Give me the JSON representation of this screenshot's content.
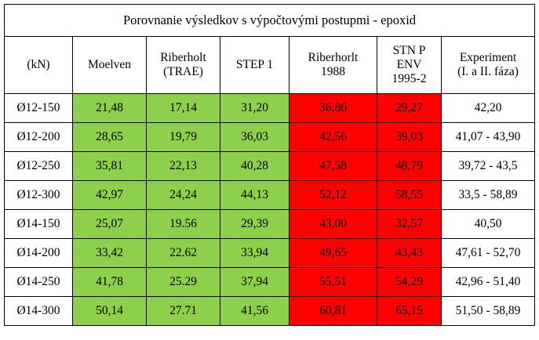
{
  "title": "Porovnanie výsledkov s výpočtovými postupmi - epoxid",
  "colors": {
    "green": "#8cd04c",
    "red": "#fe0000",
    "white": "#ffffff",
    "border": "#000000"
  },
  "headers": [
    [
      "(kN)"
    ],
    [
      "Moelven"
    ],
    [
      "Riberholt",
      "(TRAE)"
    ],
    [
      "STEP 1"
    ],
    [
      "Riberhorlt",
      "1988"
    ],
    [
      "STN P",
      "ENV",
      "1995-2"
    ],
    [
      "Experiment",
      "(I. a II. fáza)"
    ]
  ],
  "column_colors": [
    "white",
    "green",
    "green",
    "green",
    "red",
    "red",
    "white"
  ],
  "rows": [
    [
      "Ø12-150",
      "21,48",
      "17,14",
      "31,20",
      "36,86",
      "29,27",
      "42,20"
    ],
    [
      "Ø12-200",
      "28,65",
      "19,79",
      "36,03",
      "42,56",
      "39,03",
      "41,07 - 43,90"
    ],
    [
      "Ø12-250",
      "35,81",
      "22,13",
      "40,28",
      "47,58",
      "48,79",
      "39,72 - 43,5"
    ],
    [
      "Ø12-300",
      "42,97",
      "24,24",
      "44,13",
      "52,12",
      "58,55",
      "33,5 - 58,89"
    ],
    [
      "Ø14-150",
      "25,07",
      "19.56",
      "29,39",
      "43,00",
      "32,57",
      "40,50"
    ],
    [
      "Ø14-200",
      "33,42",
      "22.62",
      "33,94",
      "49,65",
      "43,43",
      "47,61 - 52,70"
    ],
    [
      "Ø14-250",
      "41,78",
      "25.29",
      "37,94",
      "55,51",
      "54,29",
      "42,96 - 51,40"
    ],
    [
      "Ø14-300",
      "50,14",
      "27.71",
      "41,56",
      "60,81",
      "65,15",
      "51,50 - 58,89"
    ]
  ]
}
